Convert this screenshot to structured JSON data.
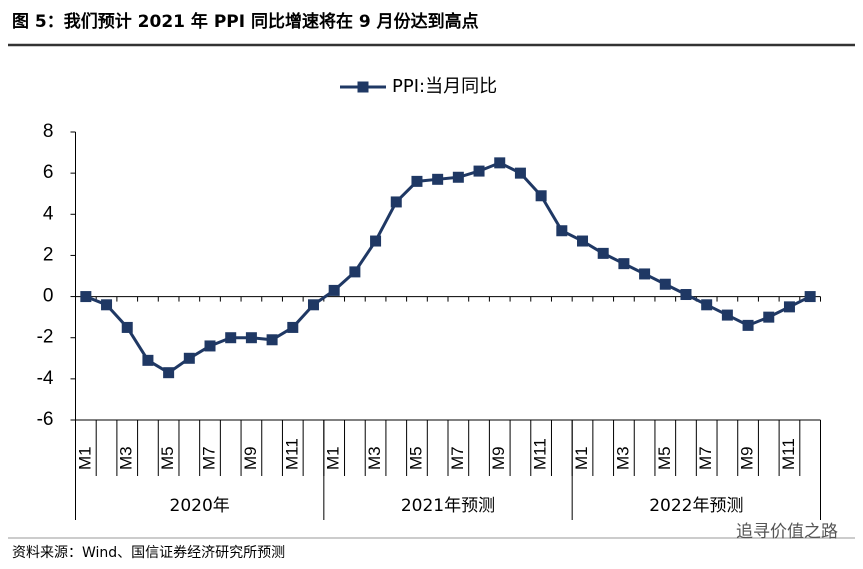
{
  "chart_data": {
    "type": "line",
    "title": "图 5：我们预计 2021 年 PPI 同比增速将在 9 月份达到高点",
    "source": "资料来源：Wind、国信证券经济研究所预测",
    "watermark": "追寻价值之路",
    "categories": [
      "M1",
      null,
      "M3",
      null,
      "M5",
      null,
      "M7",
      null,
      "M9",
      null,
      "M11",
      null,
      "M1",
      null,
      "M3",
      null,
      "M5",
      null,
      "M7",
      null,
      "M9",
      null,
      "M11",
      null,
      "M1",
      null,
      "M3",
      null,
      "M5",
      null,
      "M7",
      null,
      "M9",
      null,
      "M11",
      null
    ],
    "groups": [
      "2020年",
      "2021年预测",
      "2022年预测"
    ],
    "series": [
      {
        "name": "PPI:当月同比",
        "color": "#1f3864",
        "values": [
          0,
          -0.4,
          -1.5,
          -3.1,
          -3.7,
          -3.0,
          -2.4,
          -2.0,
          -2.0,
          -2.1,
          -1.5,
          -0.4,
          0.3,
          1.2,
          2.7,
          4.6,
          5.6,
          5.7,
          5.8,
          6.1,
          6.5,
          6.0,
          4.9,
          3.2,
          2.7,
          2.1,
          1.6,
          1.1,
          0.6,
          0.1,
          -0.4,
          -0.9,
          -1.4,
          -1.0,
          -0.5,
          0.0
        ]
      }
    ],
    "ylim": [
      -6,
      8
    ],
    "yticks": [
      -6,
      -4,
      -2,
      0,
      2,
      4,
      6,
      8
    ],
    "legend": "top",
    "grid": false
  }
}
